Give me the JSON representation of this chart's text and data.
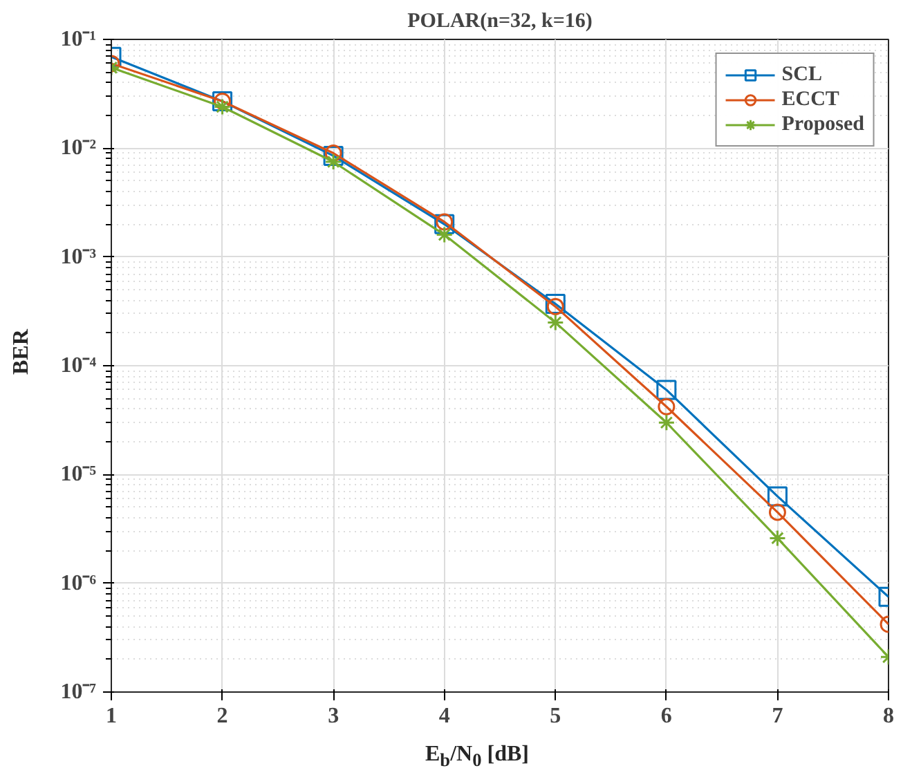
{
  "chart_data": {
    "type": "line",
    "title": "POLAR(n=32, k=16)",
    "xlabel": "E$_{b}$/N$_{0}$ [dB]",
    "ylabel": "BER",
    "log": "y",
    "grid": true,
    "legend": "top right",
    "line_style": "solid",
    "x": [
      1,
      2,
      3,
      4,
      5,
      6,
      7,
      8
    ],
    "xlim": [
      1,
      8
    ],
    "xticks": [
      1,
      2,
      3,
      4,
      5,
      6,
      7,
      8
    ],
    "ylim": [
      1e-07,
      0.1
    ],
    "yticks": [
      {
        "value": 1e-07,
        "label": "10⁻⁷"
      },
      {
        "value": 1e-06,
        "label": "10⁻⁶"
      },
      {
        "value": 1e-05,
        "label": "10⁻⁵"
      },
      {
        "value": 0.0001,
        "label": "10⁻⁴"
      },
      {
        "value": 0.001,
        "label": "10⁻³"
      },
      {
        "value": 0.01,
        "label": "10⁻²"
      },
      {
        "value": 0.1,
        "label": "10⁻¹"
      }
    ],
    "series": [
      {
        "name": "SCL",
        "color": "#0072bd",
        "marker": "square",
        "values": [
          0.069,
          0.027,
          0.0085,
          0.002,
          0.00037,
          6e-05,
          6.3e-06,
          7.5e-07
        ]
      },
      {
        "name": "ECCT",
        "color": "#d95319",
        "marker": "circle",
        "values": [
          0.06,
          0.027,
          0.009,
          0.0021,
          0.00035,
          4.2e-05,
          4.5e-06,
          4.2e-07
        ]
      },
      {
        "name": "Proposed",
        "color": "#77ac30",
        "marker": "cross",
        "values": [
          0.055,
          0.024,
          0.0075,
          0.0016,
          0.00025,
          3e-05,
          2.6e-06,
          2.1e-07
        ]
      }
    ]
  }
}
